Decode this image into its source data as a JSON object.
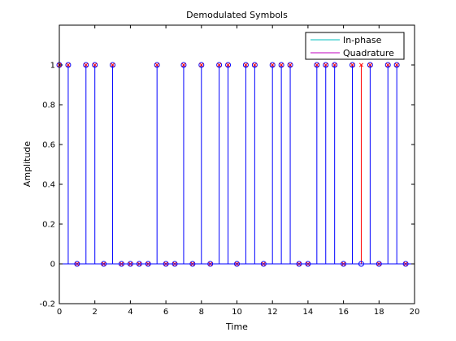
{
  "chart_data": {
    "type": "stem",
    "title": "Demodulated Symbols",
    "xlabel": "Time",
    "ylabel": "Amplitude",
    "xlim": [
      0,
      20
    ],
    "ylim": [
      -0.2,
      1.2
    ],
    "xticks": [
      "0",
      "2",
      "4",
      "6",
      "8",
      "10",
      "12",
      "14",
      "16",
      "18",
      "20"
    ],
    "yticks": [
      "-0.2",
      "0",
      "0.2",
      "0.4",
      "0.6",
      "0.8",
      "1"
    ],
    "grid": false,
    "legend_position": "top-right",
    "x": [
      0,
      0.5,
      1,
      1.5,
      2,
      2.5,
      3,
      3.5,
      4,
      4.5,
      5,
      5.5,
      6,
      6.5,
      7,
      7.5,
      8,
      8.5,
      9,
      9.5,
      10,
      10.5,
      11,
      11.5,
      12,
      12.5,
      13,
      13.5,
      14,
      14.5,
      15,
      15.5,
      16,
      16.5,
      17,
      17.5,
      18,
      18.5,
      19,
      19.5
    ],
    "series": [
      {
        "name": "In-phase",
        "color": "#00bfbf",
        "values": [
          1,
          1,
          0,
          1,
          1,
          0,
          1,
          0,
          0,
          0,
          0,
          1,
          0,
          0,
          1,
          0,
          1,
          0,
          1,
          1,
          0,
          1,
          1,
          0,
          1,
          1,
          1,
          0,
          0,
          1,
          1,
          1,
          0,
          1,
          0,
          1,
          0,
          1,
          1,
          0
        ]
      },
      {
        "name": "Quadrature",
        "color": "#bf00bf",
        "values": [
          1,
          1,
          0,
          1,
          1,
          0,
          1,
          0,
          0,
          0,
          0,
          1,
          0,
          0,
          1,
          0,
          1,
          0,
          1,
          1,
          0,
          1,
          1,
          0,
          1,
          1,
          1,
          0,
          0,
          1,
          1,
          1,
          0,
          1,
          1,
          1,
          0,
          1,
          1,
          0
        ]
      }
    ],
    "stem_color": "#0000ff",
    "mismatch_color": "#ff0000"
  }
}
